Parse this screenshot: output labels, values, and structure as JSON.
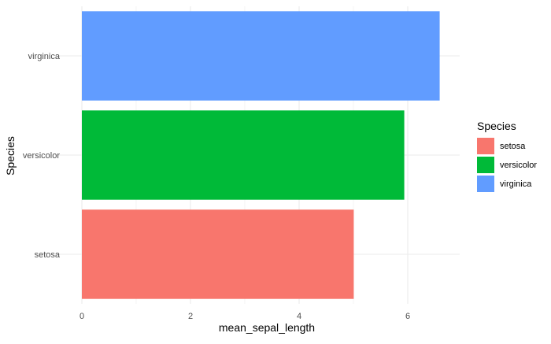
{
  "chart_data": {
    "type": "bar",
    "orientation": "horizontal",
    "categories": [
      "setosa",
      "versicolor",
      "virginica"
    ],
    "values": [
      5.006,
      5.936,
      6.588
    ],
    "colors": [
      "#F8766D",
      "#00BA38",
      "#619CFF"
    ],
    "xlabel": "mean_sepal_length",
    "ylabel": "Species",
    "xlim": [
      0,
      7
    ],
    "xticks": [
      0,
      2,
      4,
      6
    ],
    "grid": true,
    "legend": {
      "title": "Species",
      "position": "right",
      "entries": [
        "setosa",
        "versicolor",
        "virginica"
      ]
    }
  }
}
